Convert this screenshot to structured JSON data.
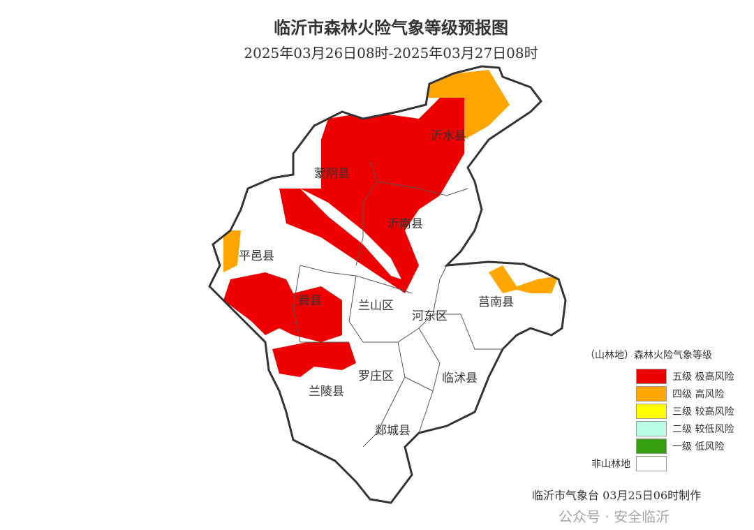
{
  "title": "临沂市森林火险气象等级预报图",
  "subtitle": "2025年03月26日08时-2025年03月27日08时",
  "districts": [
    {
      "name": "沂水县"
    },
    {
      "name": "蒙阴县"
    },
    {
      "name": "沂南县"
    },
    {
      "name": "平邑县"
    },
    {
      "name": "费县"
    },
    {
      "name": "兰山区"
    },
    {
      "name": "河东区"
    },
    {
      "name": "莒南县"
    },
    {
      "name": "罗庄区"
    },
    {
      "name": "临沭县"
    },
    {
      "name": "兰陵县"
    },
    {
      "name": "郯城县"
    }
  ],
  "legend": {
    "title": "（山林地）森林火险气象等级",
    "items": [
      {
        "label": "五级 极高风险",
        "color": "#ee0000"
      },
      {
        "label": "四级 高风险",
        "color": "#ffa500"
      },
      {
        "label": "三级 较高风险",
        "color": "#ffff00"
      },
      {
        "label": "二级 较低风险",
        "color": "#b9fbe6"
      },
      {
        "label": "一级 低风险",
        "color": "#33a010"
      }
    ],
    "non_forest": {
      "label": "非山林地",
      "color": "#ffffff"
    }
  },
  "footer": "临沂市气象台 03月25日06时制作",
  "watermark": "公众号 · 安全临沂"
}
